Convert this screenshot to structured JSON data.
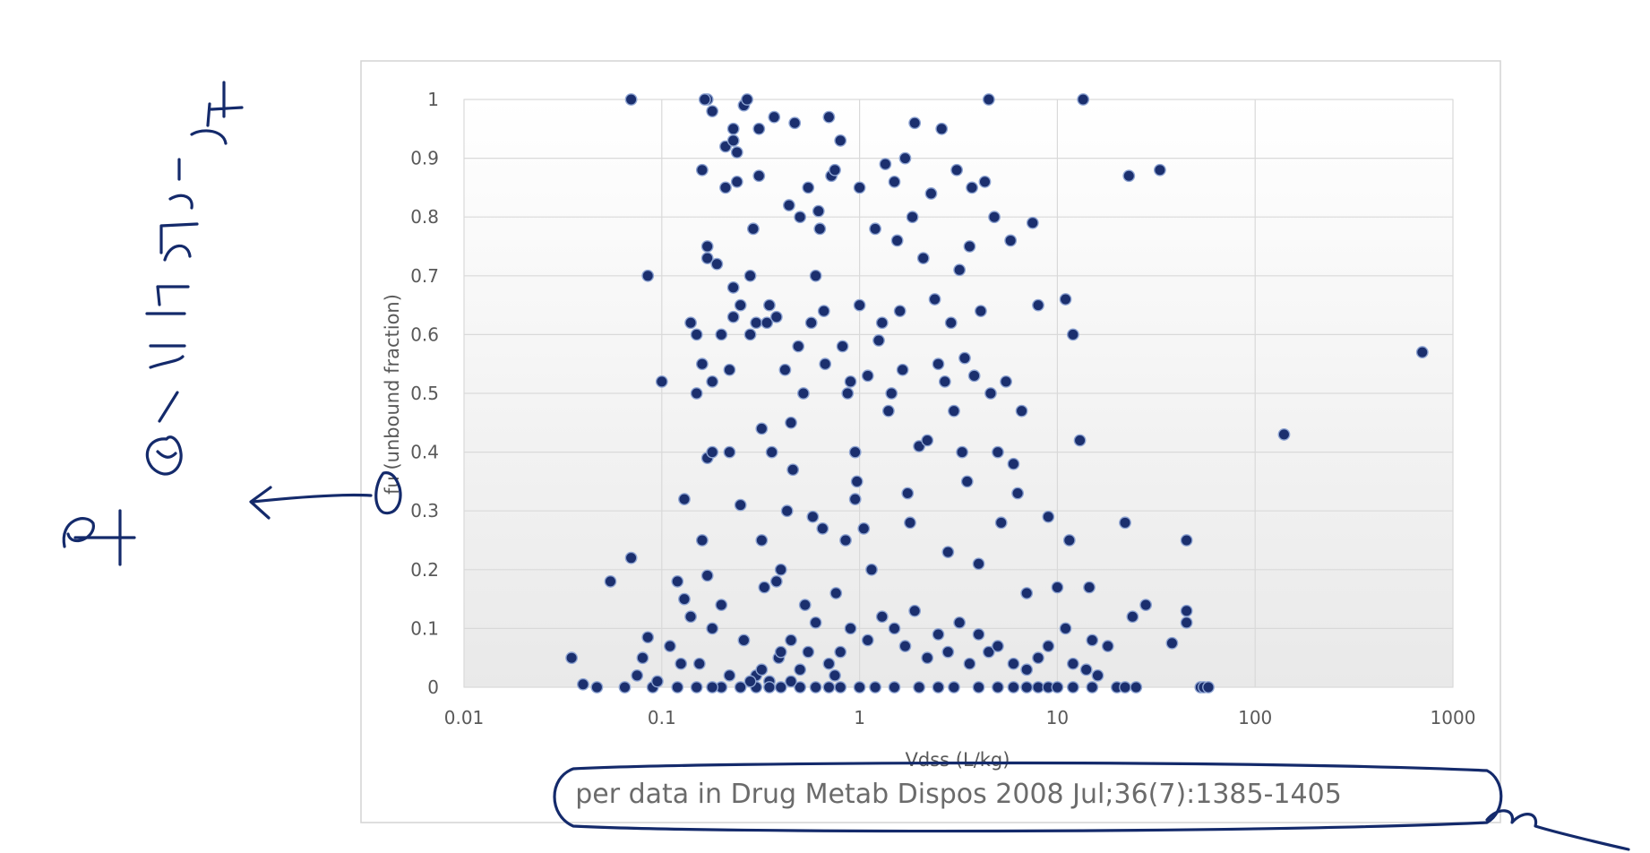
{
  "chart_data": {
    "type": "scatter",
    "title": "",
    "xlabel": "Vdss (L/kg)",
    "ylabel": "fu (unbound fraction)",
    "xscale": "log",
    "xlim": [
      0.01,
      1000
    ],
    "ylim": [
      0,
      1
    ],
    "x_ticks": [
      "0.01",
      "0.1",
      "1",
      "10",
      "100",
      "1000"
    ],
    "y_ticks": [
      "0",
      "0.1",
      "0.2",
      "0.3",
      "0.4",
      "0.5",
      "0.6",
      "0.7",
      "0.8",
      "0.9",
      "1"
    ],
    "grid": true,
    "legend": "none",
    "marker_color": "#1b2f6e",
    "marker_edge_color": "#8ea4d2",
    "source_note": "per data in Drug Metab Dispos 2008 Jul;36(7):1385-1405",
    "handwritten_note": "fu - 이라는 단어",
    "points": [
      [
        0.07,
        1.0
      ],
      [
        0.07,
        0.22
      ],
      [
        0.085,
        0.7
      ],
      [
        0.1,
        0.52
      ],
      [
        0.055,
        0.18
      ],
      [
        0.035,
        0.05
      ],
      [
        0.04,
        0.005
      ],
      [
        0.047,
        0.0
      ],
      [
        0.065,
        0.0
      ],
      [
        0.075,
        0.02
      ],
      [
        0.08,
        0.05
      ],
      [
        0.085,
        0.085
      ],
      [
        0.09,
        0.0
      ],
      [
        0.095,
        0.01
      ],
      [
        0.11,
        0.07
      ],
      [
        0.12,
        0.18
      ],
      [
        0.125,
        0.04
      ],
      [
        0.13,
        0.15
      ],
      [
        0.13,
        0.32
      ],
      [
        0.14,
        0.62
      ],
      [
        0.14,
        0.12
      ],
      [
        0.15,
        0.6
      ],
      [
        0.15,
        0.5
      ],
      [
        0.155,
        0.04
      ],
      [
        0.16,
        0.88
      ],
      [
        0.16,
        0.55
      ],
      [
        0.16,
        0.25
      ],
      [
        0.17,
        0.75
      ],
      [
        0.17,
        0.73
      ],
      [
        0.17,
        0.39
      ],
      [
        0.17,
        0.19
      ],
      [
        0.18,
        0.4
      ],
      [
        0.18,
        0.1
      ],
      [
        0.18,
        0.52
      ],
      [
        0.17,
        1.0
      ],
      [
        0.165,
        1.0
      ],
      [
        0.18,
        0.98
      ],
      [
        0.19,
        0.72
      ],
      [
        0.2,
        0.6
      ],
      [
        0.2,
        0.14
      ],
      [
        0.21,
        0.92
      ],
      [
        0.21,
        0.85
      ],
      [
        0.22,
        0.54
      ],
      [
        0.22,
        0.4
      ],
      [
        0.23,
        0.95
      ],
      [
        0.23,
        0.93
      ],
      [
        0.23,
        0.68
      ],
      [
        0.23,
        0.63
      ],
      [
        0.24,
        0.91
      ],
      [
        0.24,
        0.86
      ],
      [
        0.25,
        0.65
      ],
      [
        0.25,
        0.31
      ],
      [
        0.26,
        0.08
      ],
      [
        0.26,
        0.99
      ],
      [
        0.27,
        1.0
      ],
      [
        0.28,
        0.6
      ],
      [
        0.28,
        0.7
      ],
      [
        0.29,
        0.78
      ],
      [
        0.3,
        0.62
      ],
      [
        0.31,
        0.95
      ],
      [
        0.31,
        0.87
      ],
      [
        0.32,
        0.44
      ],
      [
        0.32,
        0.25
      ],
      [
        0.33,
        0.17
      ],
      [
        0.34,
        0.62
      ],
      [
        0.35,
        0.65
      ],
      [
        0.36,
        0.4
      ],
      [
        0.37,
        0.97
      ],
      [
        0.38,
        0.63
      ],
      [
        0.38,
        0.18
      ],
      [
        0.39,
        0.05
      ],
      [
        0.4,
        0.2
      ],
      [
        0.42,
        0.54
      ],
      [
        0.43,
        0.3
      ],
      [
        0.44,
        0.82
      ],
      [
        0.45,
        0.45
      ],
      [
        0.46,
        0.37
      ],
      [
        0.47,
        0.96
      ],
      [
        0.49,
        0.58
      ],
      [
        0.5,
        0.8
      ],
      [
        0.52,
        0.5
      ],
      [
        0.53,
        0.14
      ],
      [
        0.55,
        0.85
      ],
      [
        0.57,
        0.62
      ],
      [
        0.58,
        0.29
      ],
      [
        0.6,
        0.7
      ],
      [
        0.62,
        0.81
      ],
      [
        0.63,
        0.78
      ],
      [
        0.65,
        0.27
      ],
      [
        0.66,
        0.64
      ],
      [
        0.67,
        0.55
      ],
      [
        0.7,
        0.97
      ],
      [
        0.72,
        0.87
      ],
      [
        0.75,
        0.88
      ],
      [
        0.76,
        0.16
      ],
      [
        0.8,
        0.93
      ],
      [
        0.82,
        0.58
      ],
      [
        0.85,
        0.25
      ],
      [
        0.87,
        0.5
      ],
      [
        0.9,
        0.52
      ],
      [
        0.95,
        0.4
      ],
      [
        0.95,
        0.32
      ],
      [
        0.97,
        0.35
      ],
      [
        1.0,
        0.65
      ],
      [
        1.0,
        0.85
      ],
      [
        1.05,
        0.27
      ],
      [
        1.1,
        0.53
      ],
      [
        1.15,
        0.2
      ],
      [
        1.2,
        0.78
      ],
      [
        1.25,
        0.59
      ],
      [
        1.3,
        0.62
      ],
      [
        1.35,
        0.89
      ],
      [
        1.4,
        0.47
      ],
      [
        1.45,
        0.5
      ],
      [
        1.5,
        0.86
      ],
      [
        1.55,
        0.76
      ],
      [
        1.6,
        0.64
      ],
      [
        1.65,
        0.54
      ],
      [
        1.7,
        0.9
      ],
      [
        1.75,
        0.33
      ],
      [
        1.8,
        0.28
      ],
      [
        1.85,
        0.8
      ],
      [
        1.9,
        0.96
      ],
      [
        2.0,
        0.41
      ],
      [
        2.1,
        0.73
      ],
      [
        2.2,
        0.42
      ],
      [
        2.3,
        0.84
      ],
      [
        2.4,
        0.66
      ],
      [
        2.5,
        0.55
      ],
      [
        2.6,
        0.95
      ],
      [
        2.7,
        0.52
      ],
      [
        2.8,
        0.23
      ],
      [
        2.9,
        0.62
      ],
      [
        3.0,
        0.47
      ],
      [
        3.1,
        0.88
      ],
      [
        3.2,
        0.71
      ],
      [
        3.3,
        0.4
      ],
      [
        3.4,
        0.56
      ],
      [
        3.5,
        0.35
      ],
      [
        3.6,
        0.75
      ],
      [
        3.7,
        0.85
      ],
      [
        3.8,
        0.53
      ],
      [
        4.0,
        0.21
      ],
      [
        4.1,
        0.64
      ],
      [
        4.3,
        0.86
      ],
      [
        4.5,
        1.0
      ],
      [
        4.6,
        0.5
      ],
      [
        4.8,
        0.8
      ],
      [
        5.0,
        0.4
      ],
      [
        5.2,
        0.28
      ],
      [
        5.5,
        0.52
      ],
      [
        5.8,
        0.76
      ],
      [
        6.0,
        0.38
      ],
      [
        6.3,
        0.33
      ],
      [
        6.6,
        0.47
      ],
      [
        7.0,
        0.16
      ],
      [
        7.5,
        0.79
      ],
      [
        8.0,
        0.65
      ],
      [
        9.0,
        0.29
      ],
      [
        10.0,
        0.17
      ],
      [
        11.0,
        0.66
      ],
      [
        11.5,
        0.25
      ],
      [
        12.0,
        0.6
      ],
      [
        13.0,
        0.42
      ],
      [
        13.5,
        1.0
      ],
      [
        14.5,
        0.17
      ],
      [
        15.0,
        0.08
      ],
      [
        18.0,
        0.07
      ],
      [
        22.0,
        0.28
      ],
      [
        23.0,
        0.87
      ],
      [
        24.0,
        0.12
      ],
      [
        28.0,
        0.14
      ],
      [
        33.0,
        0.88
      ],
      [
        38.0,
        0.075
      ],
      [
        45.0,
        0.25
      ],
      [
        45.0,
        0.13
      ],
      [
        45.0,
        0.11
      ],
      [
        53.0,
        0.0
      ],
      [
        55.0,
        0.0
      ],
      [
        58.0,
        0.0
      ],
      [
        140.0,
        0.43
      ],
      [
        700.0,
        0.57
      ],
      [
        0.3,
        0.02
      ],
      [
        0.32,
        0.03
      ],
      [
        0.35,
        0.01
      ],
      [
        0.4,
        0.06
      ],
      [
        0.45,
        0.08
      ],
      [
        0.5,
        0.03
      ],
      [
        0.55,
        0.06
      ],
      [
        0.6,
        0.11
      ],
      [
        0.7,
        0.04
      ],
      [
        0.75,
        0.02
      ],
      [
        0.8,
        0.06
      ],
      [
        0.9,
        0.1
      ],
      [
        1.1,
        0.08
      ],
      [
        1.3,
        0.12
      ],
      [
        1.5,
        0.1
      ],
      [
        1.7,
        0.07
      ],
      [
        1.9,
        0.13
      ],
      [
        2.2,
        0.05
      ],
      [
        2.5,
        0.09
      ],
      [
        2.8,
        0.06
      ],
      [
        3.2,
        0.11
      ],
      [
        3.6,
        0.04
      ],
      [
        4.0,
        0.09
      ],
      [
        4.5,
        0.06
      ],
      [
        5.0,
        0.07
      ],
      [
        6.0,
        0.04
      ],
      [
        7.0,
        0.03
      ],
      [
        8.0,
        0.05
      ],
      [
        9.0,
        0.07
      ],
      [
        11.0,
        0.1
      ],
      [
        12.0,
        0.04
      ],
      [
        14.0,
        0.03
      ],
      [
        16.0,
        0.02
      ],
      [
        20.0,
        0.0
      ],
      [
        22.0,
        0.0
      ],
      [
        25.0,
        0.0
      ],
      [
        0.2,
        0.0
      ],
      [
        0.25,
        0.0
      ],
      [
        0.3,
        0.0
      ],
      [
        0.35,
        0.0
      ],
      [
        0.4,
        0.0
      ],
      [
        0.5,
        0.0
      ],
      [
        0.6,
        0.0
      ],
      [
        0.7,
        0.0
      ],
      [
        0.8,
        0.0
      ],
      [
        1.0,
        0.0
      ],
      [
        1.2,
        0.0
      ],
      [
        1.5,
        0.0
      ],
      [
        2.0,
        0.0
      ],
      [
        2.5,
        0.0
      ],
      [
        3.0,
        0.0
      ],
      [
        4.0,
        0.0
      ],
      [
        5.0,
        0.0
      ],
      [
        6.0,
        0.0
      ],
      [
        7.0,
        0.0
      ],
      [
        8.0,
        0.0
      ],
      [
        9.0,
        0.0
      ],
      [
        10.0,
        0.0
      ],
      [
        12.0,
        0.0
      ],
      [
        15.0,
        0.0
      ],
      [
        0.12,
        0.0
      ],
      [
        0.15,
        0.0
      ],
      [
        0.18,
        0.0
      ],
      [
        0.22,
        0.02
      ],
      [
        0.28,
        0.01
      ],
      [
        0.45,
        0.01
      ]
    ]
  }
}
